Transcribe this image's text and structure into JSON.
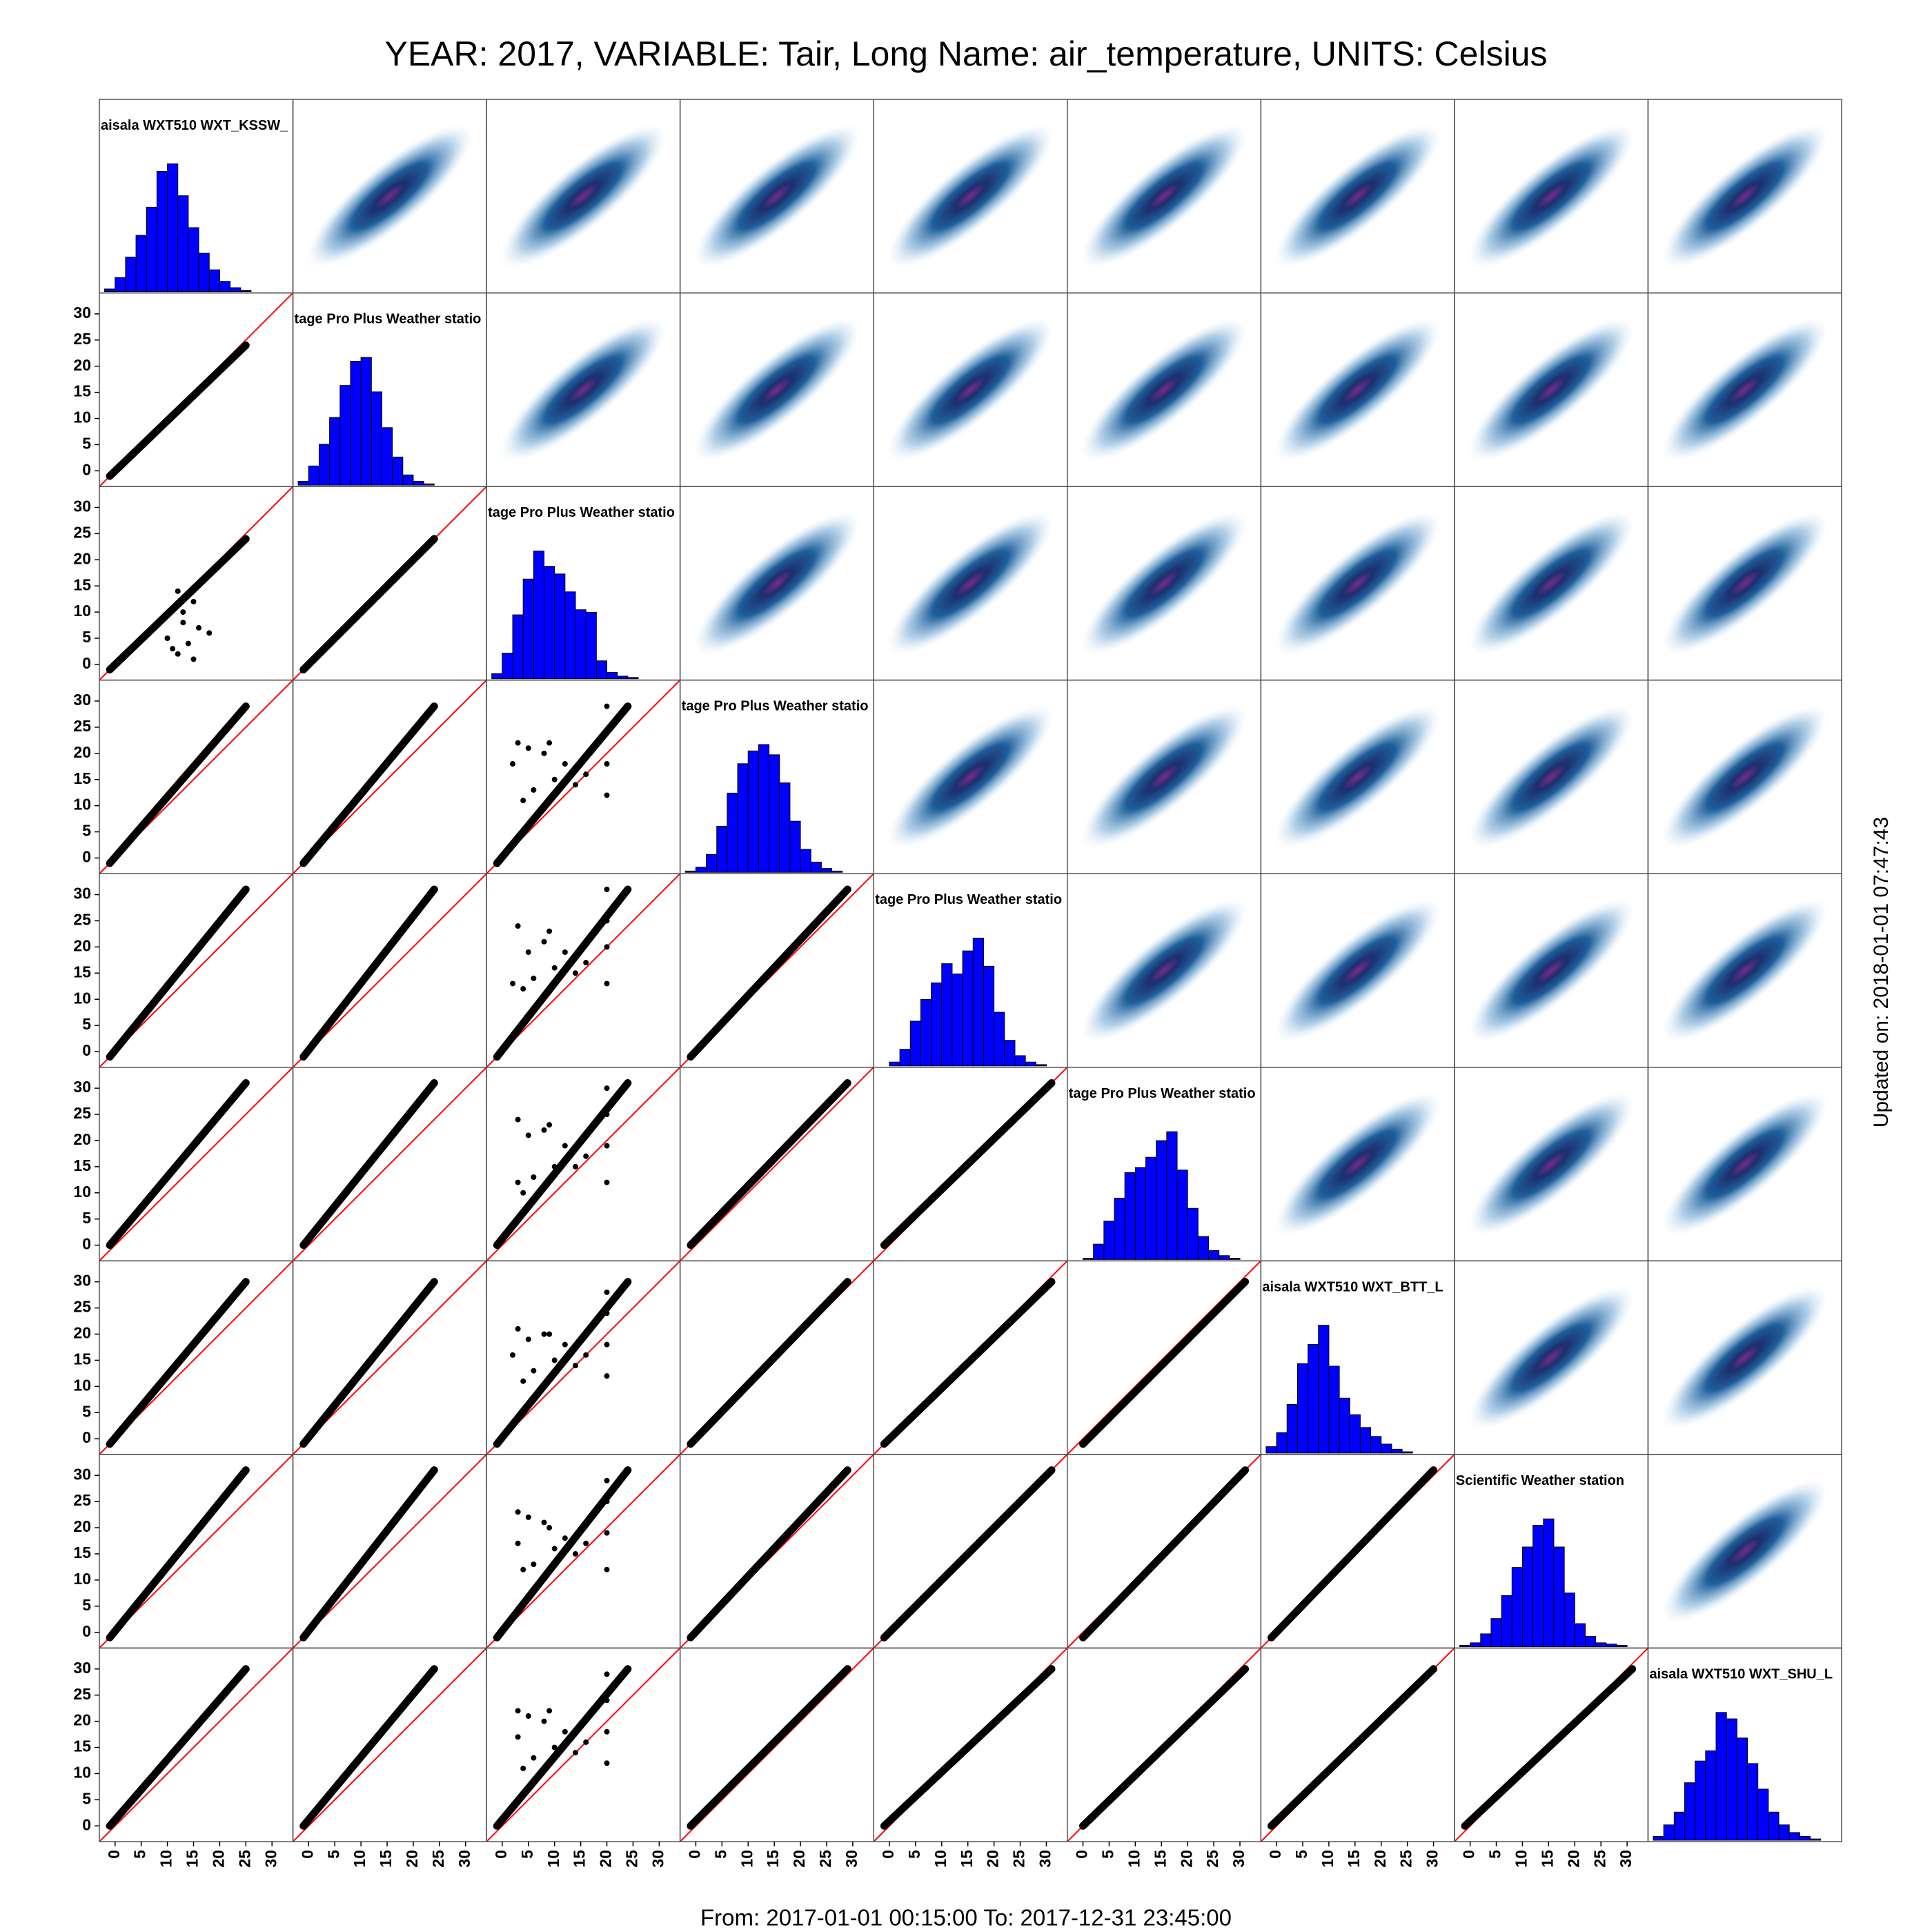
{
  "chart_data": {
    "type": "scatter_matrix",
    "title": "YEAR: 2017, VARIABLE: Tair, Long Name: air_temperature, UNITS: Celsius",
    "side_note": "Updated on: 2018-01-01 07:47:43",
    "footer": "From: 2017-01-01 00:15:00 To: 2017-12-31 23:45:00",
    "xlim": [
      -3,
      34
    ],
    "ylim": [
      -3,
      34
    ],
    "xticks": [
      0,
      5,
      10,
      15,
      20,
      25,
      30
    ],
    "yticks": [
      0,
      5,
      10,
      15,
      20,
      25,
      30
    ],
    "point_color": "#000000",
    "identity_line_color": "#ff0000",
    "hist_color": "#0000ff",
    "variables": [
      {
        "label": "aisala WXT510 WXT_KSSW_",
        "range": [
          -1,
          25
        ],
        "bins": [
          -2,
          0,
          2,
          4,
          6,
          8,
          10,
          12,
          14,
          16,
          18,
          20,
          22,
          24,
          26
        ],
        "counts": [
          2,
          11,
          27,
          44,
          66,
          94,
          100,
          75,
          50,
          30,
          17,
          8,
          3,
          1
        ]
      },
      {
        "label": "tage Pro Plus Weather statio",
        "range": [
          -1,
          24
        ],
        "bins": [
          -2,
          0,
          2,
          4,
          6,
          8,
          10,
          12,
          14,
          16,
          18,
          20,
          22,
          24
        ],
        "counts": [
          3,
          15,
          32,
          53,
          78,
          97,
          100,
          73,
          45,
          22,
          8,
          3,
          1
        ]
      },
      {
        "label": "tage Pro Plus Weather statio",
        "range": [
          -1,
          24
        ],
        "bins": [
          -2,
          0,
          2,
          4,
          6,
          8,
          10,
          12,
          14,
          16,
          18,
          20,
          22,
          24,
          26
        ],
        "counts": [
          4,
          20,
          50,
          78,
          100,
          88,
          82,
          68,
          54,
          52,
          14,
          5,
          2,
          1
        ]
      },
      {
        "label": "tage Pro Plus Weather statio",
        "range": [
          -1,
          29
        ],
        "bins": [
          -2,
          0,
          2,
          4,
          6,
          8,
          10,
          12,
          14,
          16,
          18,
          20,
          22,
          24,
          26,
          28
        ],
        "counts": [
          1,
          4,
          14,
          36,
          62,
          85,
          95,
          100,
          92,
          70,
          40,
          18,
          8,
          3,
          1
        ]
      },
      {
        "label": "tage Pro Plus Weather statio",
        "range": [
          -1,
          31
        ],
        "bins": [
          0,
          2,
          4,
          6,
          8,
          10,
          12,
          14,
          16,
          18,
          20,
          22,
          24,
          26,
          28,
          30
        ],
        "counts": [
          3,
          13,
          35,
          52,
          65,
          80,
          72,
          90,
          100,
          78,
          42,
          20,
          8,
          3,
          1
        ]
      },
      {
        "label": "tage Pro Plus Weather statio",
        "range": [
          0,
          31
        ],
        "bins": [
          0,
          2,
          4,
          6,
          8,
          10,
          12,
          14,
          16,
          18,
          20,
          22,
          24,
          26,
          28,
          30
        ],
        "counts": [
          1,
          12,
          30,
          48,
          68,
          72,
          80,
          93,
          100,
          70,
          40,
          18,
          7,
          3,
          1
        ]
      },
      {
        "label": "aisala WXT510 WXT_BTT_L",
        "range": [
          -1,
          30
        ],
        "bins": [
          -2,
          0,
          2,
          4,
          6,
          8,
          10,
          12,
          14,
          16,
          18,
          20,
          22,
          24,
          26
        ],
        "counts": [
          5,
          16,
          38,
          70,
          85,
          100,
          68,
          43,
          30,
          20,
          13,
          7,
          3,
          1
        ]
      },
      {
        "label": "Scientific  Weather station",
        "range": [
          -1,
          31
        ],
        "bins": [
          -2,
          0,
          2,
          4,
          6,
          8,
          10,
          12,
          14,
          16,
          18,
          20,
          22,
          24,
          26,
          28,
          30
        ],
        "counts": [
          1,
          3,
          10,
          22,
          40,
          62,
          78,
          95,
          100,
          78,
          42,
          18,
          8,
          3,
          2,
          1
        ]
      },
      {
        "label": "aisala WXT510 WXT_SHU_L",
        "range": [
          0,
          30
        ],
        "bins": [
          -2,
          0,
          2,
          4,
          6,
          8,
          10,
          12,
          14,
          16,
          18,
          20,
          22,
          24,
          26,
          28,
          30
        ],
        "counts": [
          3,
          12,
          22,
          45,
          62,
          70,
          100,
          95,
          80,
          60,
          40,
          22,
          12,
          6,
          3,
          1
        ]
      }
    ],
    "outliers": {
      "2,0": {
        "x": [
          10,
          12,
          13,
          14,
          15,
          16,
          17,
          11,
          15,
          13,
          18,
          12
        ],
        "y": [
          5,
          2,
          8,
          4,
          12,
          7,
          16,
          3,
          1,
          10,
          6,
          14
        ]
      },
      "3,2": {
        "x": [
          3,
          5,
          6,
          8,
          10,
          12,
          14,
          20,
          20,
          20,
          20,
          4,
          9,
          16,
          2
        ],
        "y": [
          22,
          21,
          13,
          20,
          15,
          18,
          14,
          12,
          18,
          24,
          29,
          11,
          22,
          16,
          18
        ]
      },
      "4,2": {
        "x": [
          3,
          5,
          6,
          8,
          10,
          12,
          14,
          20,
          20,
          20,
          20,
          4,
          9,
          16,
          2
        ],
        "y": [
          24,
          19,
          14,
          21,
          16,
          19,
          15,
          13,
          20,
          25,
          31,
          12,
          23,
          17,
          13
        ]
      },
      "5,2": {
        "x": [
          3,
          5,
          6,
          8,
          10,
          12,
          14,
          20,
          20,
          20,
          20,
          4,
          9,
          16,
          3
        ],
        "y": [
          24,
          21,
          13,
          22,
          15,
          19,
          15,
          12,
          19,
          25,
          30,
          10,
          23,
          17,
          12
        ]
      },
      "6,2": {
        "x": [
          3,
          5,
          6,
          8,
          10,
          12,
          14,
          20,
          20,
          20,
          20,
          4,
          9,
          16,
          2
        ],
        "y": [
          21,
          19,
          13,
          20,
          15,
          18,
          14,
          12,
          18,
          24,
          28,
          11,
          20,
          16,
          16
        ]
      },
      "7,2": {
        "x": [
          3,
          5,
          6,
          8,
          10,
          12,
          14,
          20,
          20,
          20,
          20,
          4,
          9,
          16,
          3
        ],
        "y": [
          23,
          22,
          13,
          21,
          16,
          18,
          15,
          12,
          19,
          25,
          29,
          12,
          20,
          17,
          17
        ]
      },
      "8,2": {
        "x": [
          3,
          5,
          6,
          8,
          10,
          12,
          14,
          20,
          20,
          20,
          20,
          4,
          9,
          16,
          3
        ],
        "y": [
          22,
          21,
          13,
          20,
          15,
          18,
          14,
          12,
          18,
          24,
          29,
          11,
          22,
          16,
          17
        ]
      }
    }
  }
}
